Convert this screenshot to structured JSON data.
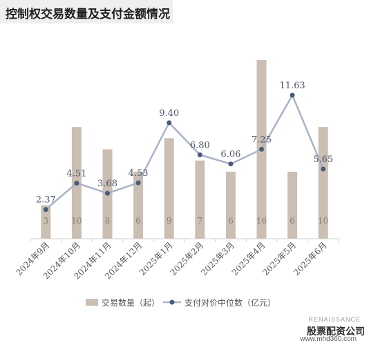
{
  "title": "控制权交易数量及支付金额情况",
  "watermark": {
    "line1": "RENAISSANCE",
    "line2": "股票配资公司",
    "line3": "www.mhd360.com"
  },
  "colors": {
    "bar": "#cbbeb2",
    "line": "#a9b3c7",
    "marker": "#4a5a78",
    "text": "#555555",
    "bar_label": "#8a7f74"
  },
  "chart_data": {
    "type": "bar+line",
    "categories": [
      "2024年9月",
      "2024年10月",
      "2024年11月",
      "2024年12月",
      "2025年1月",
      "2025年2月",
      "2025年3月",
      "2025年4月",
      "2025年5月",
      "2025年6月"
    ],
    "series": [
      {
        "name": "交易数量（起）",
        "type": "bar",
        "values": [
          3,
          10,
          8,
          6,
          9,
          7,
          6,
          16,
          6,
          10
        ]
      },
      {
        "name": "支付对价中位数（亿元）",
        "type": "line",
        "values": [
          2.37,
          4.51,
          3.68,
          4.53,
          9.4,
          6.8,
          6.06,
          7.25,
          11.63,
          5.65
        ]
      }
    ],
    "bar_ylim": [
      0,
      16
    ],
    "line_ylim": [
      0,
      14
    ],
    "grid": false,
    "legend_position": "bottom"
  }
}
